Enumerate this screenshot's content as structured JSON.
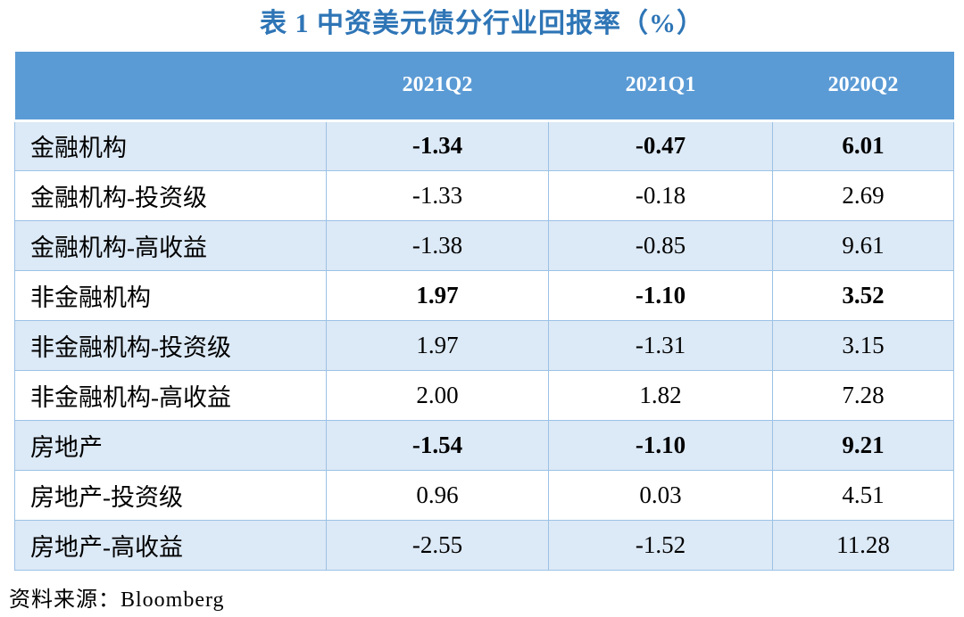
{
  "chart_data": {
    "type": "table",
    "title": "表 1 中资美元债分行业回报率（%）",
    "columns": [
      "",
      "2021Q2",
      "2021Q1",
      "2020Q2"
    ],
    "rows": [
      {
        "label": "金融机构",
        "values": [
          "-1.34",
          "-0.47",
          "6.01"
        ],
        "bold": true
      },
      {
        "label": "金融机构-投资级",
        "values": [
          "-1.33",
          "-0.18",
          "2.69"
        ],
        "bold": false
      },
      {
        "label": "金融机构-高收益",
        "values": [
          "-1.38",
          "-0.85",
          "9.61"
        ],
        "bold": false
      },
      {
        "label": "非金融机构",
        "values": [
          "1.97",
          "-1.10",
          "3.52"
        ],
        "bold": true
      },
      {
        "label": "非金融机构-投资级",
        "values": [
          "1.97",
          "-1.31",
          "3.15"
        ],
        "bold": false
      },
      {
        "label": "非金融机构-高收益",
        "values": [
          "2.00",
          "1.82",
          "7.28"
        ],
        "bold": false
      },
      {
        "label": "房地产",
        "values": [
          "-1.54",
          "-1.10",
          "9.21"
        ],
        "bold": true
      },
      {
        "label": "房地产-投资级",
        "values": [
          "0.96",
          "0.03",
          "4.51"
        ],
        "bold": false
      },
      {
        "label": "房地产-高收益",
        "values": [
          "-2.55",
          "-1.52",
          "11.28"
        ],
        "bold": false
      }
    ],
    "source": "资料来源：Bloomberg",
    "layout": {
      "banded_rows": "odd rows shaded",
      "legend": "none",
      "grid": "light blue cell borders, no borders inside header band"
    }
  },
  "colors": {
    "title_text": "#2E75B6",
    "header_bg": "#5B9BD5",
    "header_text": "#FFFFFF",
    "band_row_bg": "#DCE9F6",
    "cell_border": "#9CC2E5",
    "body_text": "#000000"
  }
}
